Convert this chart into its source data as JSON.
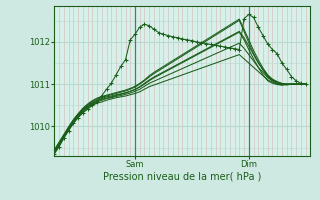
{
  "xlabel": "Pression niveau de la mer( hPa )",
  "bg_color": "#cee8e2",
  "plot_bg": "#d8f0ea",
  "grid_h_color": "#b8d8d2",
  "grid_v_color": "#c8deda",
  "vline_red": "#cc8888",
  "vline_dark": "#557766",
  "line_color": "#1a5e1a",
  "ylim": [
    1009.3,
    1012.85
  ],
  "yticks": [
    1010,
    1011,
    1012
  ],
  "xlim": [
    0,
    54
  ],
  "sam_x": 17,
  "dim_x": 41,
  "series": [
    [
      1009.38,
      1009.55,
      1009.75,
      1009.92,
      1010.08,
      1010.22,
      1010.33,
      1010.42,
      1010.5,
      1010.55,
      1010.58,
      1010.62,
      1010.65,
      1010.68,
      1010.7,
      1010.72,
      1010.75,
      1010.78,
      1010.82,
      1010.88,
      1010.94,
      1010.98,
      1011.02,
      1011.06,
      1011.1,
      1011.14,
      1011.18,
      1011.22,
      1011.26,
      1011.3,
      1011.34,
      1011.38,
      1011.42,
      1011.46,
      1011.5,
      1011.54,
      1011.58,
      1011.62,
      1011.66,
      1011.7,
      1011.6,
      1011.5,
      1011.4,
      1011.3,
      1011.2,
      1011.1,
      1011.05,
      1011.0,
      1010.98,
      1011.0,
      1011.0,
      1011.0,
      1011.0,
      1011.0
    ],
    [
      1009.4,
      1009.58,
      1009.76,
      1009.93,
      1010.1,
      1010.24,
      1010.36,
      1010.45,
      1010.53,
      1010.58,
      1010.62,
      1010.66,
      1010.68,
      1010.71,
      1010.73,
      1010.76,
      1010.79,
      1010.83,
      1010.88,
      1010.95,
      1011.02,
      1011.07,
      1011.12,
      1011.17,
      1011.22,
      1011.27,
      1011.32,
      1011.37,
      1011.42,
      1011.47,
      1011.52,
      1011.57,
      1011.62,
      1011.67,
      1011.72,
      1011.77,
      1011.82,
      1011.87,
      1011.92,
      1011.97,
      1011.85,
      1011.7,
      1011.55,
      1011.4,
      1011.28,
      1011.15,
      1011.08,
      1011.02,
      1010.99,
      1010.98,
      1011.0,
      1011.0,
      1011.0,
      1011.0
    ],
    [
      1009.42,
      1009.6,
      1009.78,
      1009.96,
      1010.13,
      1010.27,
      1010.39,
      1010.49,
      1010.57,
      1010.62,
      1010.66,
      1010.7,
      1010.72,
      1010.75,
      1010.77,
      1010.8,
      1010.83,
      1010.88,
      1010.94,
      1011.02,
      1011.1,
      1011.17,
      1011.23,
      1011.29,
      1011.35,
      1011.41,
      1011.47,
      1011.53,
      1011.59,
      1011.65,
      1011.71,
      1011.77,
      1011.83,
      1011.89,
      1011.95,
      1012.01,
      1012.07,
      1012.13,
      1012.19,
      1012.25,
      1012.1,
      1011.9,
      1011.7,
      1011.5,
      1011.35,
      1011.2,
      1011.1,
      1011.05,
      1011.01,
      1011.0,
      1011.0,
      1011.0,
      1011.0,
      1011.0
    ],
    [
      1009.45,
      1009.63,
      1009.81,
      1009.99,
      1010.16,
      1010.3,
      1010.43,
      1010.53,
      1010.61,
      1010.67,
      1010.71,
      1010.74,
      1010.77,
      1010.8,
      1010.83,
      1010.86,
      1010.9,
      1010.95,
      1011.02,
      1011.1,
      1011.2,
      1011.28,
      1011.35,
      1011.42,
      1011.49,
      1011.56,
      1011.63,
      1011.7,
      1011.77,
      1011.84,
      1011.91,
      1011.98,
      1012.05,
      1012.12,
      1012.19,
      1012.26,
      1012.33,
      1012.4,
      1012.47,
      1012.54,
      1012.3,
      1012.05,
      1011.8,
      1011.58,
      1011.38,
      1011.22,
      1011.12,
      1011.06,
      1011.02,
      1011.0,
      1011.0,
      1011.0,
      1011.0,
      1011.0
    ],
    [
      1009.43,
      1009.61,
      1009.8,
      1009.98,
      1010.15,
      1010.29,
      1010.41,
      1010.51,
      1010.59,
      1010.65,
      1010.69,
      1010.72,
      1010.75,
      1010.78,
      1010.81,
      1010.84,
      1010.88,
      1010.93,
      1011.0,
      1011.08,
      1011.17,
      1011.25,
      1011.32,
      1011.39,
      1011.46,
      1011.53,
      1011.6,
      1011.67,
      1011.74,
      1011.81,
      1011.88,
      1011.95,
      1012.02,
      1012.09,
      1012.16,
      1012.23,
      1012.3,
      1012.37,
      1012.44,
      1012.51,
      1012.25,
      1011.98,
      1011.73,
      1011.52,
      1011.33,
      1011.18,
      1011.08,
      1011.03,
      1011.01,
      1011.0,
      1011.0,
      1011.0,
      1011.0,
      1011.0
    ],
    [
      1009.38,
      1009.56,
      1009.75,
      1009.93,
      1010.1,
      1010.25,
      1010.37,
      1010.47,
      1010.55,
      1010.6,
      1010.64,
      1010.67,
      1010.7,
      1010.73,
      1010.76,
      1010.79,
      1010.83,
      1010.87,
      1010.93,
      1011.0,
      1011.08,
      1011.15,
      1011.21,
      1011.27,
      1011.33,
      1011.39,
      1011.45,
      1011.51,
      1011.57,
      1011.63,
      1011.69,
      1011.75,
      1011.81,
      1011.87,
      1011.93,
      1011.99,
      1012.05,
      1012.11,
      1012.17,
      1012.23,
      1012.05,
      1011.82,
      1011.6,
      1011.4,
      1011.22,
      1011.08,
      1011.02,
      1010.99,
      1010.98,
      1011.0,
      1011.0,
      1011.0,
      1011.0,
      1011.0
    ]
  ],
  "peaked_series_x": [
    0,
    1,
    2,
    3,
    4,
    5,
    6,
    7,
    8,
    9,
    10,
    11,
    12,
    13,
    14,
    15,
    16,
    17,
    18,
    19,
    20,
    21,
    22,
    23,
    24,
    25,
    26,
    27,
    28,
    29,
    30,
    31,
    32,
    33,
    34,
    35,
    36,
    37,
    38,
    39,
    40,
    41,
    42,
    43,
    44,
    45,
    46,
    47,
    48,
    49,
    50,
    51,
    52,
    53
  ],
  "peaked_series_y": [
    1009.35,
    1009.52,
    1009.72,
    1009.9,
    1010.07,
    1010.21,
    1010.32,
    1010.41,
    1010.5,
    1010.58,
    1010.73,
    1010.88,
    1011.02,
    1011.22,
    1011.42,
    1011.58,
    1012.05,
    1012.18,
    1012.35,
    1012.42,
    1012.38,
    1012.3,
    1012.22,
    1012.18,
    1012.15,
    1012.12,
    1012.1,
    1012.07,
    1012.05,
    1012.03,
    1012.0,
    1011.98,
    1011.96,
    1011.94,
    1011.92,
    1011.9,
    1011.88,
    1011.86,
    1011.84,
    1011.82,
    1012.55,
    1012.65,
    1012.58,
    1012.35,
    1012.15,
    1011.95,
    1011.82,
    1011.72,
    1011.5,
    1011.35,
    1011.18,
    1011.08,
    1011.02,
    1011.0
  ]
}
